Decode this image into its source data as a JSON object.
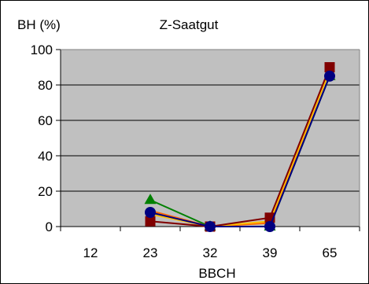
{
  "chart_data": {
    "type": "line",
    "title": "Z-Saatgut",
    "ylabel": "BH (%)",
    "xlabel": "BBCH",
    "categories": [
      "12",
      "23",
      "32",
      "39",
      "65"
    ],
    "ylim": [
      0,
      100
    ],
    "yticks": [
      0,
      20,
      40,
      60,
      80,
      100
    ],
    "grid": true,
    "legend": "none",
    "plot_background": "#C0C0C0",
    "series": [
      {
        "color": "#008000",
        "marker": "triangle",
        "values": [
          null,
          15,
          0,
          0,
          85
        ]
      },
      {
        "color": "#FF6600",
        "marker": "none",
        "values": [
          null,
          9,
          0,
          2,
          88
        ]
      },
      {
        "color": "#FFC000",
        "marker": "none",
        "values": [
          null,
          7,
          0,
          3,
          88
        ]
      },
      {
        "color": "#800000",
        "marker": "square",
        "values": [
          null,
          3,
          0,
          5,
          90
        ]
      },
      {
        "color": "#000080",
        "marker": "circle",
        "values": [
          null,
          8,
          0,
          0,
          85
        ]
      }
    ]
  }
}
